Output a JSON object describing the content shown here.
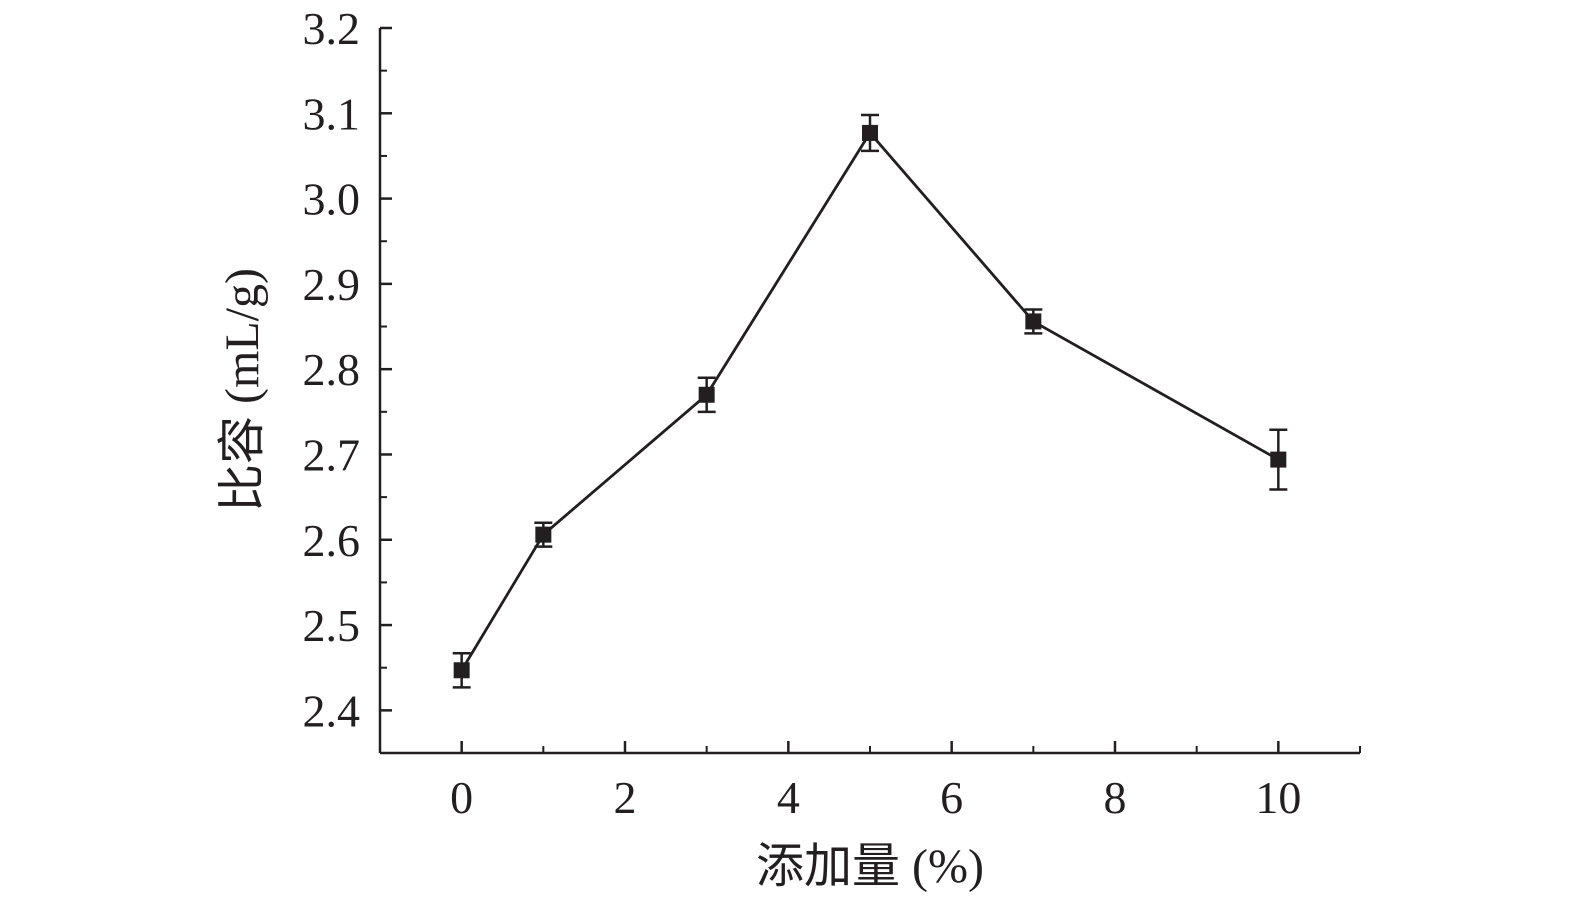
{
  "chart_data": {
    "type": "line",
    "title": "",
    "xlabel": "添加量 (%)",
    "ylabel": "比容 (mL/g)",
    "xlim": [
      -1,
      11
    ],
    "ylim": [
      2.35,
      3.2
    ],
    "x_ticks": [
      0,
      2,
      4,
      6,
      8,
      10
    ],
    "x_tick_labels": [
      "0",
      "2",
      "4",
      "6",
      "8",
      "10"
    ],
    "y_ticks": [
      2.4,
      2.5,
      2.6,
      2.7,
      2.8,
      2.9,
      3.0,
      3.1,
      3.2
    ],
    "y_tick_labels": [
      "2.4",
      "2.5",
      "2.6",
      "2.7",
      "2.8",
      "2.9",
      "3.0",
      "3.1",
      "3.2"
    ],
    "grid": false,
    "legend": "none",
    "series": [
      {
        "x": [
          0,
          1,
          3,
          5,
          7,
          10
        ],
        "y": [
          2.447,
          2.606,
          2.77,
          3.077,
          2.856,
          2.694
        ],
        "error": [
          0.02,
          0.014,
          0.02,
          0.021,
          0.014,
          0.035
        ],
        "marker": "square",
        "color": "#231f20"
      }
    ]
  }
}
